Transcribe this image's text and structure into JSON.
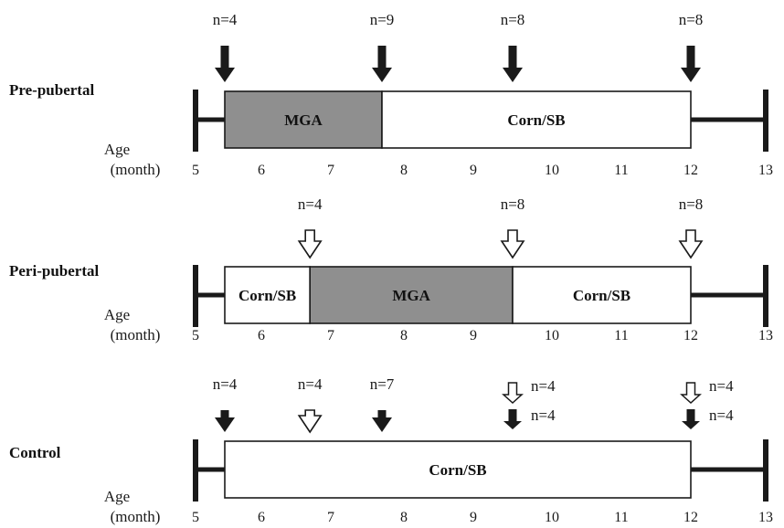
{
  "age_label": "Age",
  "age_unit": "(month)",
  "tick_labels": [
    "5",
    "6",
    "7",
    "8",
    "9",
    "10",
    "11",
    "12",
    "13"
  ],
  "colors": {
    "mga_fill": "#8f8f8f",
    "corn_fill": "#ffffff",
    "line": "#1a1a1a"
  },
  "legend_meaning": {
    "filled_arrow": "solid-black-arrow",
    "open_arrow": "open-white-arrow"
  },
  "timelines": [
    {
      "id": "pre",
      "group": "Pre-pubertal",
      "axis_range_months": [
        5,
        13
      ],
      "segments": [
        {
          "label": "MGA",
          "start": 5.5,
          "end": 7.7,
          "type": "mga"
        },
        {
          "label": "Corn/SB",
          "start": 7.7,
          "end": 12.0,
          "type": "corn"
        }
      ],
      "arrows": [
        {
          "month": 5.5,
          "style": "filled",
          "n": "n=4"
        },
        {
          "month": 7.7,
          "style": "filled",
          "n": "n=9"
        },
        {
          "month": 9.5,
          "style": "filled",
          "n": "n=8"
        },
        {
          "month": 12.0,
          "style": "filled",
          "n": "n=8"
        }
      ]
    },
    {
      "id": "peri",
      "group": "Peri-pubertal",
      "axis_range_months": [
        5,
        13
      ],
      "segments": [
        {
          "label": "Corn/SB",
          "start": 5.5,
          "end": 6.7,
          "type": "corn"
        },
        {
          "label": "MGA",
          "start": 6.7,
          "end": 9.5,
          "type": "mga"
        },
        {
          "label": "Corn/SB",
          "start": 9.5,
          "end": 12.0,
          "type": "corn"
        }
      ],
      "arrows": [
        {
          "month": 6.7,
          "style": "open",
          "n": "n=4"
        },
        {
          "month": 9.5,
          "style": "open",
          "n": "n=8"
        },
        {
          "month": 12.0,
          "style": "open",
          "n": "n=8"
        }
      ]
    },
    {
      "id": "control",
      "group": "Control",
      "axis_range_months": [
        5,
        13
      ],
      "segments": [
        {
          "label": "Corn/SB",
          "start": 5.5,
          "end": 12.0,
          "type": "corn"
        }
      ],
      "arrows": [
        {
          "month": 5.5,
          "style": "filled",
          "n": "n=4"
        },
        {
          "month": 6.7,
          "style": "open",
          "n": "n=4"
        },
        {
          "month": 7.7,
          "style": "filled",
          "n": "n=7"
        },
        {
          "month": 9.5,
          "style": "pair",
          "n_open": "n=4",
          "n_filled": "n=4"
        },
        {
          "month": 12.0,
          "style": "pair",
          "n_open": "n=4",
          "n_filled": "n=4"
        }
      ]
    }
  ]
}
